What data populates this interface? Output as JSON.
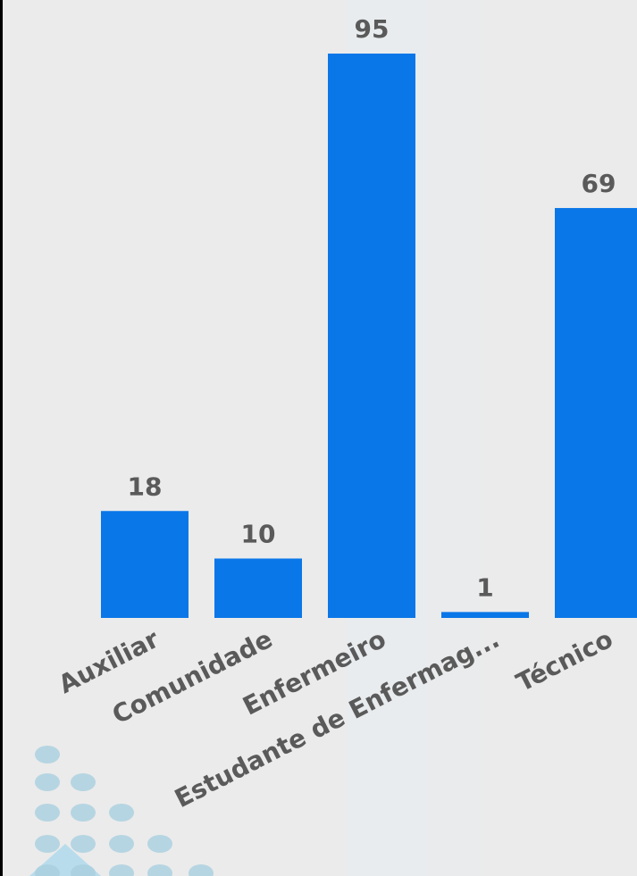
{
  "chart_data": {
    "type": "bar",
    "title": "",
    "xlabel": "",
    "ylabel": "",
    "categories": [
      "Auxiliar",
      "Comunidade",
      "Enfermeiro",
      "Estudante de Enfermag...",
      "Técnico"
    ],
    "values": [
      18,
      10,
      95,
      1,
      69
    ],
    "ylim": [
      0,
      95
    ],
    "grid": false,
    "legend": "none",
    "data_labels": true
  },
  "colors": {
    "bar": "#0a77e8",
    "label": "#5a5a5a",
    "background": "#ebebeb",
    "dots": "#a9cfe0"
  }
}
